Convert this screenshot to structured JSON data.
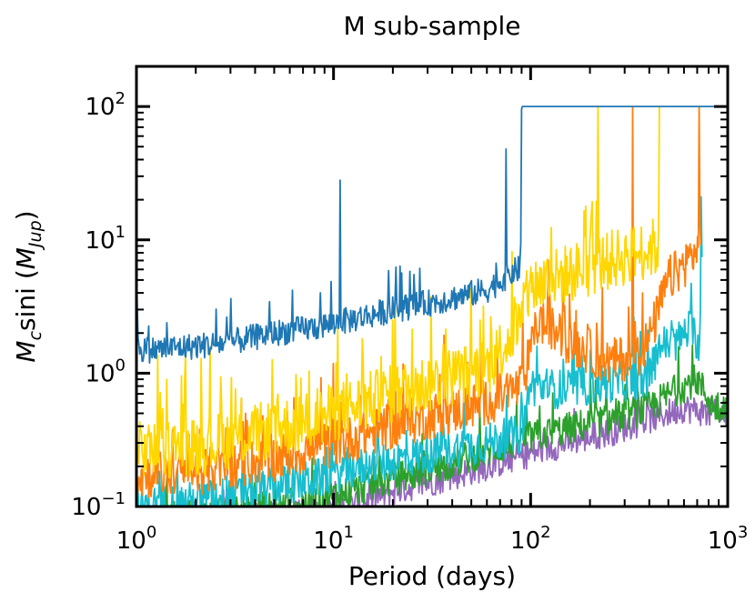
{
  "chart_data": {
    "type": "line",
    "title": "M sub-sample",
    "xlabel": "Period (days)",
    "ylabel_main": "M",
    "ylabel_sub": "c",
    "ylabel_mid": "sini (",
    "ylabel_unit": "M",
    "ylabel_unit_sub": "Jup",
    "ylabel_end": ")",
    "xscale": "log",
    "yscale": "log",
    "xlim": [
      1,
      1000
    ],
    "ylim": [
      0.1,
      200
    ],
    "xticks": [
      {
        "value": 1,
        "base": "10",
        "exp": "0"
      },
      {
        "value": 10,
        "base": "10",
        "exp": "1"
      },
      {
        "value": 100,
        "base": "10",
        "exp": "2"
      },
      {
        "value": 1000,
        "base": "10",
        "exp": "3"
      }
    ],
    "yticks": [
      {
        "value": 0.1,
        "base": "10",
        "exp": "−1"
      },
      {
        "value": 1,
        "base": "10",
        "exp": "0"
      },
      {
        "value": 10,
        "base": "10",
        "exp": "1"
      },
      {
        "value": 100,
        "base": "10",
        "exp": "2"
      }
    ],
    "series": [
      {
        "name": "purple",
        "color": "#9467bd",
        "x": [
          1.0,
          2.0,
          3.0,
          5.0,
          8.0,
          12.0,
          20.0,
          35.0,
          60.0,
          100.0,
          150.0,
          250.0,
          400.0,
          600.0,
          800.0,
          1000.0
        ],
        "base": [
          0.07,
          0.075,
          0.08,
          0.085,
          0.09,
          0.1,
          0.13,
          0.16,
          0.2,
          0.25,
          0.3,
          0.36,
          0.45,
          0.55,
          0.5,
          0.48
        ],
        "noise": 0.22,
        "spike_prob": 0.05,
        "spike_mult": 1.5
      },
      {
        "name": "green",
        "color": "#2ca02c",
        "x": [
          1.0,
          2.0,
          3.0,
          5.0,
          8.0,
          12.0,
          20.0,
          35.0,
          60.0,
          100.0,
          150.0,
          250.0,
          400.0,
          550.0,
          700.0,
          850.0,
          1000.0
        ],
        "base": [
          0.08,
          0.085,
          0.09,
          0.1,
          0.11,
          0.13,
          0.16,
          0.2,
          0.26,
          0.33,
          0.38,
          0.45,
          0.55,
          0.75,
          0.9,
          0.55,
          0.56
        ],
        "noise": 0.25,
        "spike_prob": 0.06,
        "spike_mult": 1.8
      },
      {
        "name": "cyan",
        "color": "#17becf",
        "x": [
          1.0,
          2.0,
          3.0,
          5.0,
          8.0,
          12.0,
          20.0,
          35.0,
          60.0,
          90.0,
          100.0,
          150.0,
          250.0,
          400.0,
          450.0,
          550.0,
          650.0,
          720.0,
          740.0
        ],
        "base": [
          0.1,
          0.11,
          0.12,
          0.14,
          0.16,
          0.19,
          0.22,
          0.26,
          0.3,
          0.35,
          0.8,
          0.75,
          0.85,
          0.9,
          1.6,
          1.7,
          2.2,
          1.6,
          9.0
        ],
        "noise": 0.3,
        "spike_prob": 0.07,
        "spike_mult": 2.2
      },
      {
        "name": "orange",
        "color": "#ff7f0e",
        "x": [
          1.0,
          2.0,
          3.0,
          5.0,
          8.0,
          12.0,
          20.0,
          35.0,
          60.0,
          90.0,
          110.0,
          150.0,
          250.0,
          350.0,
          400.0,
          500.0,
          600.0,
          700.0,
          730.0
        ],
        "base": [
          0.17,
          0.18,
          0.2,
          0.23,
          0.27,
          0.32,
          0.4,
          0.5,
          0.6,
          0.8,
          2.5,
          1.8,
          1.2,
          1.4,
          1.8,
          5.0,
          6.5,
          8.5,
          10.0
        ],
        "noise": 0.35,
        "spike_prob": 0.08,
        "spike_mult": 2.6
      },
      {
        "name": "gold",
        "color": "#ffd700",
        "x": [
          1.0,
          2.0,
          3.0,
          5.0,
          8.0,
          12.0,
          20.0,
          35.0,
          60.0,
          90.0,
          100.0,
          150.0,
          250.0,
          350.0,
          450.0
        ],
        "base": [
          0.26,
          0.28,
          0.32,
          0.38,
          0.45,
          0.55,
          0.7,
          0.9,
          1.1,
          2.5,
          4.5,
          5.5,
          7.0,
          8.0,
          9.0
        ],
        "noise": 0.45,
        "spike_prob": 0.11,
        "spike_mult": 3.2
      },
      {
        "name": "blue",
        "color": "#1f77b4",
        "x": [
          1.0,
          1.02,
          1.05,
          1.2,
          2.0,
          3.0,
          5.0,
          8.0,
          12.0,
          20.0,
          35.0,
          60.0,
          85.0,
          89.0,
          90.0,
          760.0,
          780.0,
          790.0,
          1000.0
        ],
        "base": [
          7.0,
          1.8,
          1.5,
          1.5,
          1.6,
          1.7,
          2.0,
          2.2,
          2.5,
          3.0,
          3.5,
          4.2,
          6.0,
          6.0,
          100.0,
          100.0,
          100.0,
          100.0,
          100.0
        ],
        "noise": 0.2,
        "spike_prob": 0.05,
        "spike_mult": 2.3
      }
    ],
    "spikes": [
      {
        "series": "blue",
        "x": 10.8,
        "y": 28
      },
      {
        "series": "blue",
        "x": 75,
        "y": 48
      },
      {
        "series": "gold",
        "x": 220,
        "y": 100
      },
      {
        "series": "gold",
        "x": 450,
        "y": 100
      },
      {
        "series": "orange",
        "x": 330,
        "y": 100
      },
      {
        "series": "orange",
        "x": 720,
        "y": 100
      },
      {
        "series": "cyan",
        "x": 740,
        "y": 21
      }
    ]
  }
}
